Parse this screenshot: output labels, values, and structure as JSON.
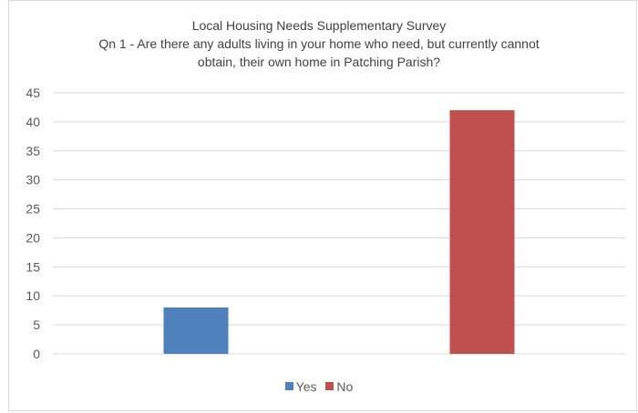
{
  "chart_data": {
    "type": "bar",
    "title_lines": [
      "Local Housing Needs Supplementary Survey",
      "Qn 1 - Are there any adults living in your home who need, but currently cannot",
      "obtain, their own home in Patching Parish?"
    ],
    "categories": [
      "Yes",
      "No"
    ],
    "values": [
      8,
      42
    ],
    "colors": [
      "#4f81bd",
      "#c0504d"
    ],
    "ylim": [
      0,
      45
    ],
    "yticks": [
      0,
      5,
      10,
      15,
      20,
      25,
      30,
      35,
      40,
      45
    ],
    "grid": true,
    "legend_position": "bottom"
  }
}
